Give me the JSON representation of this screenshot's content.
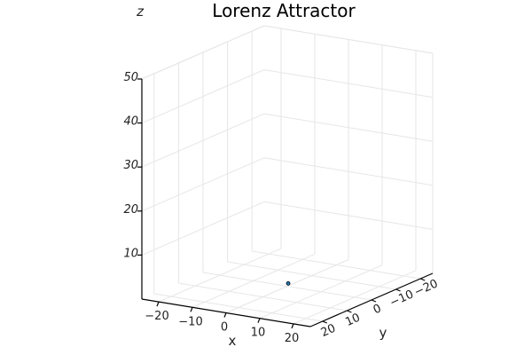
{
  "chart_data": {
    "type": "scatter",
    "title": "Lorenz Attractor",
    "xlabel": "x",
    "ylabel": "y",
    "zlabel": "z",
    "xlim": [
      -25,
      25
    ],
    "ylim": [
      -25,
      25
    ],
    "zlim": [
      0,
      50
    ],
    "x_ticks": [
      -20,
      -10,
      0,
      10,
      20
    ],
    "y_ticks": [
      -20,
      -10,
      0,
      10,
      20
    ],
    "z_ticks": [
      10,
      20,
      30,
      40,
      50
    ],
    "x_tick_labels": [
      "−20",
      "−10",
      "0",
      "10",
      "20"
    ],
    "y_tick_labels": [
      "−20",
      "−10",
      "0",
      "10",
      "20"
    ],
    "z_tick_labels": [
      "10",
      "20",
      "30",
      "40",
      "50"
    ],
    "grid": true,
    "series": [
      {
        "points": [
          {
            "x": 1,
            "y": 1,
            "z": 1
          }
        ],
        "color": "#1f77b4"
      }
    ]
  }
}
